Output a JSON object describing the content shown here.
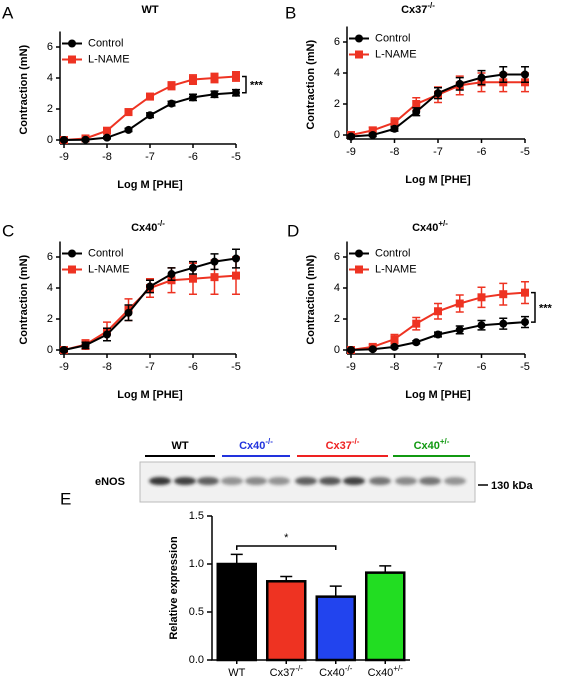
{
  "chart_data": [
    {
      "type": "line",
      "panel": "A",
      "title": [
        "WT"
      ],
      "xlabel": "Log M [PHE]",
      "ylabel": "Contraction (mN)",
      "x": [
        -9,
        -8.5,
        -8,
        -7.5,
        -7,
        -6.5,
        -6,
        -5.5,
        -5
      ],
      "xlim": [
        -9,
        -5
      ],
      "xticks": [
        -9,
        -8,
        -7,
        -6,
        -5
      ],
      "ylim": [
        0,
        7
      ],
      "yticks": [
        0,
        2,
        4,
        6
      ],
      "legend": "upper left",
      "annotation": "***",
      "series": [
        {
          "name": "Control",
          "color": "#000000",
          "values": [
            0,
            0.02,
            0.15,
            0.65,
            1.6,
            2.35,
            2.75,
            2.95,
            3.05
          ],
          "errors": [
            0.05,
            0.05,
            0.08,
            0.1,
            0.15,
            0.15,
            0.2,
            0.2,
            0.2
          ]
        },
        {
          "name": "L-NAME",
          "color": "#ee3322",
          "values": [
            0,
            0.1,
            0.6,
            1.8,
            2.8,
            3.5,
            3.9,
            4.0,
            4.1
          ],
          "errors": [
            0.05,
            0.08,
            0.15,
            0.2,
            0.2,
            0.25,
            0.3,
            0.3,
            0.3
          ]
        }
      ]
    },
    {
      "type": "line",
      "panel": "B",
      "title": [
        "Cx37",
        "-/-"
      ],
      "xlabel": "Log M [PHE]",
      "ylabel": "Contraction (mN)",
      "x": [
        -9,
        -8.5,
        -8,
        -7.5,
        -7,
        -6.5,
        -6,
        -5.5,
        -5
      ],
      "xlim": [
        -9,
        -5
      ],
      "xticks": [
        -9,
        -8,
        -7,
        -6,
        -5
      ],
      "ylim": [
        0,
        7
      ],
      "yticks": [
        0,
        2,
        4,
        6
      ],
      "legend": "upper left",
      "series": [
        {
          "name": "Control",
          "color": "#000000",
          "values": [
            -0.1,
            0.0,
            0.4,
            1.5,
            2.7,
            3.3,
            3.7,
            3.9,
            3.9
          ],
          "errors": [
            0.1,
            0.1,
            0.15,
            0.25,
            0.35,
            0.4,
            0.45,
            0.5,
            0.5
          ]
        },
        {
          "name": "L-NAME",
          "color": "#ee3322",
          "values": [
            0,
            0.3,
            0.8,
            2.0,
            2.6,
            3.2,
            3.4,
            3.4,
            3.4
          ],
          "errors": [
            0.15,
            0.2,
            0.3,
            0.4,
            0.5,
            0.6,
            0.6,
            0.6,
            0.6
          ]
        }
      ]
    },
    {
      "type": "line",
      "panel": "C",
      "title": [
        "Cx40",
        "-/-"
      ],
      "xlabel": "Log M [PHE]",
      "ylabel": "Contraction (mN)",
      "x": [
        -9,
        -8.5,
        -8,
        -7.5,
        -7,
        -6.5,
        -6,
        -5.5,
        -5
      ],
      "xlim": [
        -9,
        -5
      ],
      "xticks": [
        -9,
        -8,
        -7,
        -6,
        -5
      ],
      "ylim": [
        0,
        7
      ],
      "yticks": [
        0,
        2,
        4,
        6
      ],
      "legend": "upper left",
      "series": [
        {
          "name": "Control",
          "color": "#000000",
          "values": [
            0,
            0.3,
            1.0,
            2.4,
            4.1,
            4.9,
            5.3,
            5.7,
            5.9
          ],
          "errors": [
            0.1,
            0.2,
            0.4,
            0.5,
            0.4,
            0.4,
            0.4,
            0.5,
            0.6
          ]
        },
        {
          "name": "L-NAME",
          "color": "#ee3322",
          "values": [
            0,
            0.35,
            1.2,
            2.6,
            4.0,
            4.5,
            4.6,
            4.7,
            4.8
          ],
          "errors": [
            0.1,
            0.3,
            0.6,
            0.7,
            0.6,
            0.8,
            1.0,
            1.1,
            1.2
          ]
        }
      ]
    },
    {
      "type": "line",
      "panel": "D",
      "title": [
        "Cx40",
        "+/-"
      ],
      "xlabel": "Log M [PHE]",
      "ylabel": "Contraction (mN)",
      "x": [
        -9,
        -8.5,
        -8,
        -7.5,
        -7,
        -6.5,
        -6,
        -5.5,
        -5
      ],
      "xlim": [
        -9,
        -5
      ],
      "xticks": [
        -9,
        -8,
        -7,
        -6,
        -5
      ],
      "ylim": [
        0,
        7
      ],
      "yticks": [
        0,
        2,
        4,
        6
      ],
      "legend": "upper left",
      "annotation": "***",
      "series": [
        {
          "name": "Control",
          "color": "#000000",
          "values": [
            0,
            0.05,
            0.2,
            0.5,
            1.0,
            1.3,
            1.6,
            1.7,
            1.8
          ],
          "errors": [
            0.05,
            0.05,
            0.08,
            0.1,
            0.15,
            0.25,
            0.3,
            0.35,
            0.35
          ]
        },
        {
          "name": "L-NAME",
          "color": "#ee3322",
          "values": [
            0,
            0.2,
            0.7,
            1.7,
            2.5,
            3.0,
            3.4,
            3.6,
            3.7
          ],
          "errors": [
            0.1,
            0.15,
            0.3,
            0.4,
            0.5,
            0.55,
            0.65,
            0.7,
            0.7
          ]
        }
      ]
    },
    {
      "type": "bar",
      "panel": "E",
      "ylabel": "Relative expression",
      "annotation": "*",
      "categories": [
        [
          "WT"
        ],
        [
          "Cx37",
          "-/-"
        ],
        [
          "Cx40",
          "-/-"
        ],
        [
          "Cx40",
          "+/-"
        ]
      ],
      "values": [
        1.0,
        0.82,
        0.66,
        0.91
      ],
      "errors": [
        0.1,
        0.05,
        0.11,
        0.07
      ],
      "colors": [
        "#000000",
        "#ee3322",
        "#2244ee",
        "#22dd22"
      ],
      "ylim": [
        0,
        1.5
      ],
      "yticks": [
        {
          "value": 0,
          "label": "0.0"
        },
        {
          "value": 0.5,
          "label": "0.5"
        },
        {
          "value": 1,
          "label": "1.0"
        },
        {
          "value": 1.5,
          "label": "1.5"
        }
      ]
    }
  ],
  "blot": {
    "protein": "eNOS",
    "size": "130 kDa",
    "groups": [
      {
        "name": [
          "WT"
        ],
        "color": "#000000"
      },
      {
        "name": [
          "Cx40",
          "-/-"
        ],
        "color": "#2233dd"
      },
      {
        "name": [
          "Cx37",
          "-/-"
        ],
        "color": "#ee2222"
      },
      {
        "name": [
          "Cx40",
          "+/-"
        ],
        "color": "#119911"
      }
    ]
  }
}
